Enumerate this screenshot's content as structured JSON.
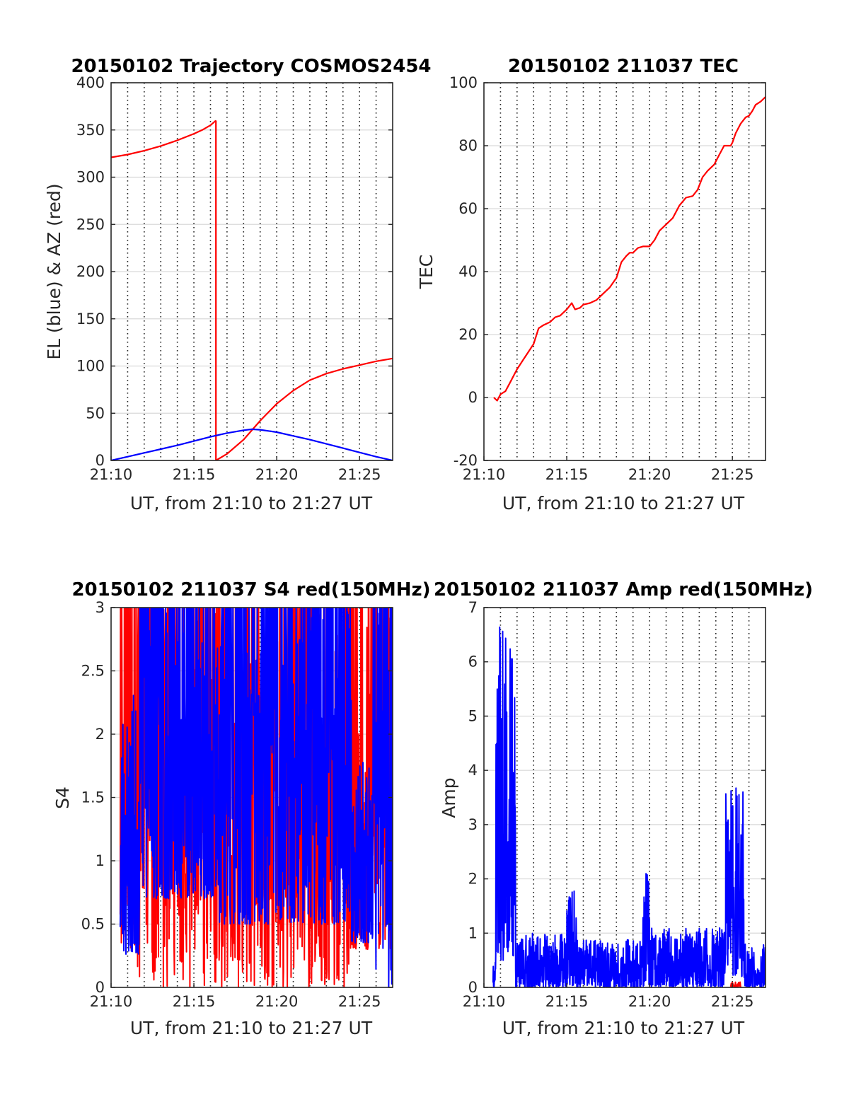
{
  "figure_background": "#ffffff",
  "colors": {
    "el": "#0000ff",
    "az": "#ff0000",
    "grid_h": "#d9d9d9",
    "grid_v": "#262626",
    "axis": "#262626"
  },
  "chart_data": [
    {
      "id": "traj",
      "type": "line",
      "title": "20150102 Trajectory COSMOS2454",
      "xlabel": "UT, from 21:10 to 21:27 UT",
      "ylabel": "EL (blue) & AZ (red)",
      "xlim": [
        0,
        17
      ],
      "ylim": [
        0,
        400
      ],
      "xticks": [
        0,
        5,
        10,
        15
      ],
      "xtick_labels": [
        "21:10",
        "21:15",
        "21:20",
        "21:25"
      ],
      "yticks": [
        0,
        50,
        100,
        150,
        200,
        250,
        300,
        350,
        400
      ],
      "ytick_labels": [
        "0",
        "50",
        "100",
        "150",
        "200",
        "250",
        "300",
        "350",
        "400"
      ],
      "vlines_minutes": [
        1,
        2,
        3,
        4,
        5,
        6,
        7,
        8,
        9,
        10,
        11,
        12,
        13,
        14,
        15,
        16
      ],
      "series": [
        {
          "color": "#ff0000",
          "x": [
            0.0,
            1.0,
            2.0,
            3.0,
            4.0,
            5.0,
            5.5,
            6.0,
            6.33
          ],
          "y": [
            321,
            324,
            328,
            333,
            339,
            346,
            350,
            355,
            360
          ]
        },
        {
          "color": "#ff0000",
          "x": [
            6.33,
            6.33,
            7.0,
            8.0,
            9.0,
            10.0,
            11.0,
            12.0,
            13.0,
            14.0,
            15.0,
            16.0,
            17.0
          ],
          "y": [
            360,
            0,
            7,
            22,
            42,
            60,
            74,
            85,
            92,
            97,
            101,
            105,
            108
          ]
        },
        {
          "color": "#0000ff",
          "x": [
            0.0,
            1.0,
            2.0,
            3.0,
            4.0,
            5.0,
            6.0,
            7.0,
            8.0,
            8.5,
            9.0,
            10.0,
            11.0,
            12.0,
            13.0,
            14.0,
            15.0,
            16.0,
            17.0
          ],
          "y": [
            0,
            4,
            8,
            12,
            16,
            20.5,
            25,
            29,
            32,
            33,
            32.5,
            30,
            26,
            22,
            17.5,
            13,
            8.5,
            4,
            0
          ]
        }
      ]
    },
    {
      "id": "tec",
      "type": "line",
      "title": "20150102 211037 TEC",
      "xlabel": "UT, from 21:10 to 21:27 UT",
      "ylabel": "TEC",
      "xlim": [
        0,
        17
      ],
      "ylim": [
        -20,
        100
      ],
      "xticks": [
        0,
        5,
        10,
        15
      ],
      "xtick_labels": [
        "21:10",
        "21:15",
        "21:20",
        "21:25"
      ],
      "yticks": [
        -20,
        0,
        20,
        40,
        60,
        80,
        100
      ],
      "ytick_labels": [
        "-20",
        "0",
        "20",
        "40",
        "60",
        "80",
        "100"
      ],
      "vlines_minutes": [
        1,
        2,
        3,
        4,
        5,
        6,
        7,
        8,
        9,
        10,
        11,
        12,
        13,
        14,
        15,
        16
      ],
      "series": [
        {
          "color": "#ff0000",
          "x": [
            0.6,
            0.8,
            1.0,
            1.3,
            1.6,
            2.0,
            2.5,
            3.0,
            3.3,
            3.6,
            4.0,
            4.3,
            4.6,
            5.0,
            5.3,
            5.5,
            5.8,
            6.0,
            6.4,
            6.8,
            7.2,
            7.6,
            8.0,
            8.3,
            8.6,
            8.8,
            9.0,
            9.3,
            9.6,
            10.0,
            10.3,
            10.6,
            11.0,
            11.4,
            11.8,
            12.2,
            12.6,
            12.9,
            13.2,
            13.5,
            13.9,
            14.2,
            14.5,
            14.7,
            14.9,
            15.0,
            15.2,
            15.5,
            15.8,
            16.0,
            16.2,
            16.4,
            16.7,
            17.0
          ],
          "y": [
            0,
            -1,
            1,
            2,
            5,
            9,
            13,
            17,
            22,
            23,
            24,
            25.5,
            26,
            28,
            30,
            28,
            28.5,
            29.5,
            30,
            31,
            33,
            35,
            38,
            43,
            45,
            46,
            46,
            47.5,
            48,
            48,
            50,
            53,
            55,
            57,
            61,
            63.5,
            64,
            66,
            70,
            72,
            74,
            77,
            80,
            80,
            80,
            81,
            84,
            87,
            89,
            89.5,
            91,
            93,
            94,
            95.5
          ]
        }
      ]
    },
    {
      "id": "s4",
      "type": "line",
      "title": "20150102 211037 S4 red(150MHz)",
      "xlabel": "UT, from 21:10 to 21:27 UT",
      "ylabel": "S4",
      "xlim": [
        0,
        17
      ],
      "ylim": [
        0,
        3
      ],
      "xticks": [
        0,
        5,
        10,
        15
      ],
      "xtick_labels": [
        "21:10",
        "21:15",
        "21:20",
        "21:25"
      ],
      "yticks": [
        0,
        0.5,
        1,
        1.5,
        2,
        2.5,
        3
      ],
      "ytick_labels": [
        "0",
        "0.5",
        "1",
        "1.5",
        "2",
        "2.5",
        "3"
      ],
      "vlines_minutes": [
        1,
        2,
        3,
        4,
        5,
        6,
        7,
        8,
        9,
        10,
        11,
        12,
        13,
        14,
        15,
        16
      ],
      "noise_series": [
        {
          "color": "#ff0000",
          "x_start": 0.55,
          "x_end": 17.0,
          "points": 720,
          "seed": 11,
          "segments": [
            {
              "x": [
                0.55,
                1.6
              ],
              "min": 0.3,
              "max": 3.0
            },
            {
              "x": [
                1.6,
                9.0
              ],
              "min": 0.0,
              "max": 3.0
            },
            {
              "x": [
                9.0,
                14.5
              ],
              "min": 0.0,
              "max": 3.0
            },
            {
              "x": [
                14.5,
                17.0
              ],
              "min": 0.3,
              "max": 3.0
            }
          ]
        },
        {
          "color": "#0000ff",
          "x_start": 0.55,
          "x_end": 17.0,
          "points": 900,
          "seed": 23,
          "segments": [
            {
              "x": [
                0.55,
                1.7
              ],
              "min": 0.25,
              "max": 2.4
            },
            {
              "x": [
                1.7,
                6.5
              ],
              "min": 0.7,
              "max": 3.0
            },
            {
              "x": [
                6.5,
                14.5
              ],
              "min": 0.5,
              "max": 3.0
            },
            {
              "x": [
                14.5,
                15.8
              ],
              "min": 0.35,
              "max": 1.8
            },
            {
              "x": [
                15.8,
                17.0
              ],
              "min": 0.0,
              "max": 3.0
            }
          ]
        }
      ]
    },
    {
      "id": "amp",
      "type": "line",
      "title": "20150102 211037 Amp red(150MHz)",
      "xlabel": "UT, from 21:10 to 21:27 UT",
      "ylabel": "Amp",
      "xlim": [
        0,
        17
      ],
      "ylim": [
        0,
        7
      ],
      "xticks": [
        0,
        5,
        10,
        15
      ],
      "xtick_labels": [
        "21:10",
        "21:15",
        "21:20",
        "21:25"
      ],
      "yticks": [
        0,
        1,
        2,
        3,
        4,
        5,
        6,
        7
      ],
      "ytick_labels": [
        "0",
        "1",
        "2",
        "3",
        "4",
        "5",
        "6",
        "7"
      ],
      "vlines_minutes": [
        1,
        2,
        3,
        4,
        5,
        6,
        7,
        8,
        9,
        10,
        11,
        12,
        13,
        14,
        15,
        16
      ],
      "noise_series": [
        {
          "color": "#0000ff",
          "x_start": 0.55,
          "x_end": 17.0,
          "points": 1100,
          "seed": 37,
          "segments": [
            {
              "x": [
                0.55,
                0.7
              ],
              "min": 0.0,
              "max": 0.8
            },
            {
              "x": [
                0.7,
                1.9
              ],
              "min": 0.5,
              "max": 6.7
            },
            {
              "x": [
                1.9,
                2.3
              ],
              "min": 0.0,
              "max": 0.9
            },
            {
              "x": [
                2.3,
                5.0
              ],
              "min": 0.0,
              "max": 1.0
            },
            {
              "x": [
                5.0,
                5.6
              ],
              "min": 0.0,
              "max": 1.8
            },
            {
              "x": [
                5.6,
                9.6
              ],
              "min": 0.0,
              "max": 0.9
            },
            {
              "x": [
                9.6,
                10.0
              ],
              "min": 0.0,
              "max": 2.1
            },
            {
              "x": [
                10.0,
                14.6
              ],
              "min": 0.0,
              "max": 1.1
            },
            {
              "x": [
                14.6,
                15.7
              ],
              "min": 0.2,
              "max": 3.8
            },
            {
              "x": [
                15.7,
                17.0
              ],
              "min": 0.0,
              "max": 0.8
            }
          ]
        },
        {
          "color": "#ff0000",
          "x_start": 14.9,
          "x_end": 15.5,
          "points": 20,
          "seed": 5,
          "segments": [
            {
              "x": [
                14.9,
                15.5
              ],
              "min": 0.0,
              "max": 0.12
            }
          ]
        }
      ]
    }
  ]
}
